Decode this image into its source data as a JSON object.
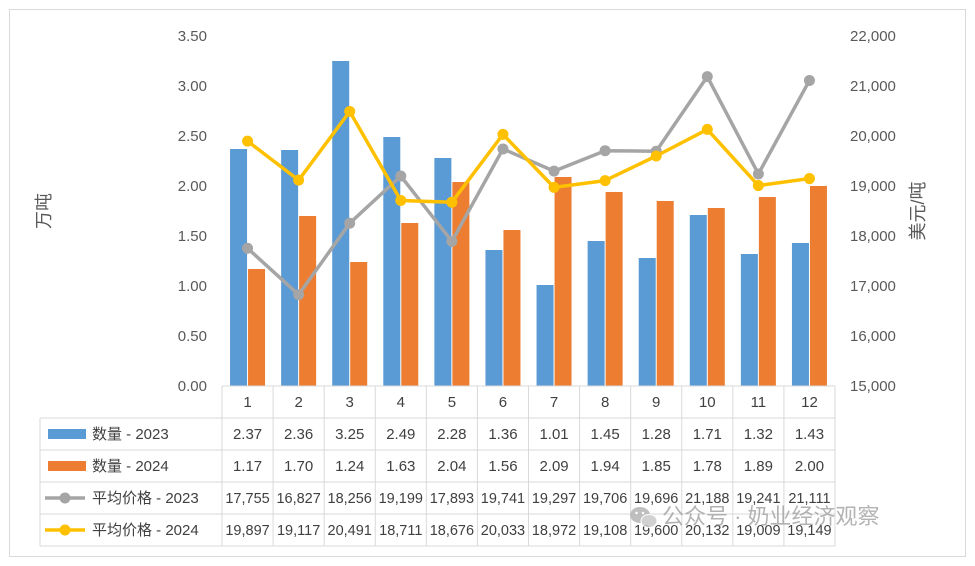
{
  "chart_data": {
    "type": "bar",
    "categories": [
      "1",
      "2",
      "3",
      "4",
      "5",
      "6",
      "7",
      "8",
      "9",
      "10",
      "11",
      "12"
    ],
    "y_left": {
      "label": "万吨",
      "ylim": [
        0,
        3.5
      ],
      "ticks": [
        "0.00",
        "0.50",
        "1.00",
        "1.50",
        "2.00",
        "2.50",
        "3.00",
        "3.50"
      ]
    },
    "y_right": {
      "label": "美元/吨",
      "ylim": [
        15000,
        22000
      ],
      "ticks": [
        "15,000",
        "16,000",
        "17,000",
        "18,000",
        "19,000",
        "20,000",
        "21,000",
        "22,000"
      ]
    },
    "grid": false,
    "legend": "table-below",
    "series": [
      {
        "name": "数量 - 2023",
        "type": "bar",
        "axis": "left",
        "color": "#5b9bd5",
        "values": [
          2.37,
          2.36,
          3.25,
          2.49,
          2.28,
          1.36,
          1.01,
          1.45,
          1.28,
          1.71,
          1.32,
          1.43
        ],
        "labels": [
          "2.37",
          "2.36",
          "3.25",
          "2.49",
          "2.28",
          "1.36",
          "1.01",
          "1.45",
          "1.28",
          "1.71",
          "1.32",
          "1.43"
        ]
      },
      {
        "name": "数量 - 2024",
        "type": "bar",
        "axis": "left",
        "color": "#ed7d31",
        "values": [
          1.17,
          1.7,
          1.24,
          1.63,
          2.04,
          1.56,
          2.09,
          1.94,
          1.85,
          1.78,
          1.89,
          2.0
        ],
        "labels": [
          "1.17",
          "1.70",
          "1.24",
          "1.63",
          "2.04",
          "1.56",
          "2.09",
          "1.94",
          "1.85",
          "1.78",
          "1.89",
          "2.00"
        ]
      },
      {
        "name": "平均价格 - 2023",
        "type": "line",
        "axis": "right",
        "color": "#a5a5a5",
        "values": [
          17755,
          16827,
          18256,
          19199,
          17893,
          19741,
          19297,
          19706,
          19696,
          21188,
          19241,
          21111
        ],
        "labels": [
          "17,755",
          "16,827",
          "18,256",
          "19,199",
          "17,893",
          "19,741",
          "19,297",
          "19,706",
          "19,696",
          "21,188",
          "19,241",
          "21,111"
        ]
      },
      {
        "name": "平均价格 - 2024",
        "type": "line",
        "axis": "right",
        "color": "#ffc000",
        "values": [
          19897,
          19117,
          20491,
          18711,
          18676,
          20033,
          18972,
          19108,
          19600,
          20132,
          19009,
          19149
        ],
        "labels": [
          "19,897",
          "19,117",
          "20,491",
          "18,711",
          "18,676",
          "20,033",
          "18,972",
          "19,108",
          "19,600",
          "20,132",
          "19,009",
          "19,149"
        ]
      }
    ]
  },
  "watermark": {
    "text": "公众号 · 奶业经济观察"
  }
}
